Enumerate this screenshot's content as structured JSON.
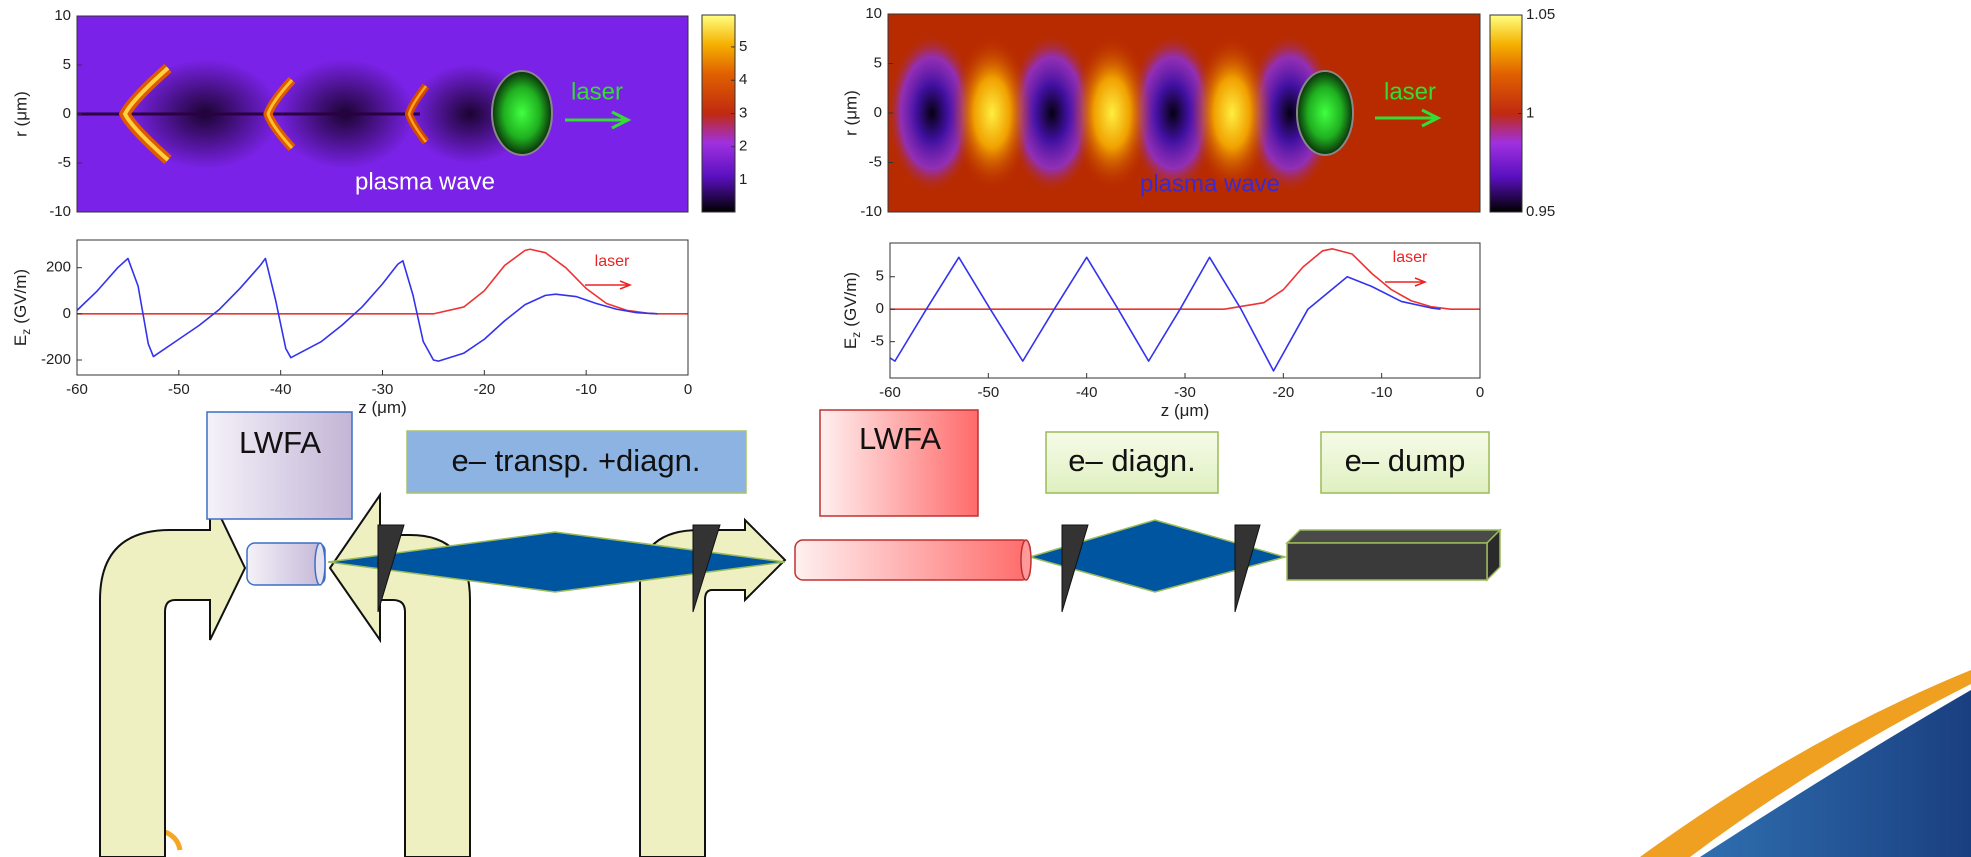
{
  "chart_data": [
    {
      "type": "heatmap",
      "ylabel": "r (μm)",
      "ylim": [
        -10,
        10
      ],
      "yticks": [
        10,
        5,
        0,
        -5,
        -10
      ],
      "colorbar": {
        "clim": [
          0.04,
          5.96
        ],
        "ticks": [
          1,
          2,
          3,
          4,
          5
        ]
      },
      "annotations": [
        {
          "text": "laser",
          "color": "#33dd33"
        },
        {
          "text": "plasma wave",
          "color": "#ffffff"
        }
      ]
    },
    {
      "type": "heatmap",
      "ylabel": "r (μm)",
      "ylim": [
        -10,
        10
      ],
      "yticks": [
        10,
        5,
        0,
        -5,
        -10
      ],
      "colorbar": {
        "clim": [
          0.95,
          1.05
        ],
        "ticks": [
          1.05,
          1,
          0.95
        ]
      },
      "annotations": [
        {
          "text": "laser",
          "color": "#33dd33"
        },
        {
          "text": "plasma wave",
          "color": "#3a2ad0"
        }
      ]
    },
    {
      "type": "line",
      "xlabel": "z (μm)",
      "ylabel": "E",
      "ylabel_subscript": "z",
      "ylabel_unit": "(GV/m)",
      "xlim": [
        -60,
        0
      ],
      "xticks": [
        -60,
        -50,
        -40,
        -30,
        -20,
        -10,
        0
      ],
      "ylim": [
        -265,
        320
      ],
      "yticks": [
        200,
        0,
        -200
      ],
      "annotations": [
        {
          "text": "laser",
          "color": "#ee2222"
        }
      ],
      "series": [
        {
          "color": "#ee3333",
          "x": [
            -60,
            -25,
            -22,
            -20,
            -18,
            -16,
            -15.5,
            -14,
            -12,
            -10,
            -8,
            -6,
            -4,
            -3,
            0
          ],
          "values": [
            0,
            0,
            30,
            100,
            210,
            275,
            280,
            265,
            200,
            110,
            45,
            15,
            3,
            0,
            0
          ]
        },
        {
          "color": "#3333ee",
          "x": [
            -60,
            -58,
            -56,
            -55,
            -54,
            -53,
            -52.5,
            -50,
            -48,
            -46,
            -44,
            -42,
            -41.5,
            -40.5,
            -39.5,
            -39,
            -36,
            -34,
            -32,
            -30,
            -28.5,
            -28,
            -27,
            -26,
            -25,
            -24.5,
            -22,
            -20,
            -18,
            -16,
            -14,
            -13,
            -11,
            -9,
            -7,
            -5,
            -3
          ],
          "values": [
            15,
            100,
            200,
            240,
            120,
            -130,
            -185,
            -110,
            -50,
            20,
            110,
            210,
            240,
            60,
            -150,
            -190,
            -120,
            -50,
            30,
            130,
            215,
            230,
            80,
            -120,
            -200,
            -205,
            -170,
            -110,
            -30,
            40,
            80,
            85,
            75,
            45,
            20,
            5,
            0
          ]
        }
      ]
    },
    {
      "type": "line",
      "xlabel": "z (μm)",
      "ylabel": "E",
      "ylabel_subscript": "z",
      "ylabel_unit": "(GV/m)",
      "xlim": [
        -60,
        0
      ],
      "xticks": [
        -60,
        -50,
        -40,
        -30,
        -20,
        -10,
        0
      ],
      "ylim": [
        -10.6,
        10.2
      ],
      "yticks": [
        5,
        0,
        -5
      ],
      "annotations": [
        {
          "text": "laser",
          "color": "#ee2222"
        }
      ],
      "series": [
        {
          "color": "#ee3333",
          "x": [
            -60,
            -26,
            -22,
            -20,
            -18,
            -16,
            -15,
            -13,
            -11,
            -9,
            -7,
            -5,
            -3,
            0
          ],
          "values": [
            0,
            0,
            1,
            3,
            6.5,
            9,
            9.3,
            8.5,
            5.5,
            3,
            1.3,
            0.4,
            0,
            0
          ]
        },
        {
          "color": "#3333ee",
          "x": [
            -60,
            -59.5,
            -56.3,
            -53,
            -49.8,
            -46.5,
            -43.3,
            -40,
            -36.8,
            -33.7,
            -30.5,
            -27.5,
            -24.3,
            -21,
            -17.5,
            -13.5,
            -11,
            -8,
            -5,
            -4
          ],
          "values": [
            -7.5,
            -8,
            0,
            8,
            0,
            -8,
            0,
            8,
            0,
            -8,
            0,
            8,
            0,
            -9.5,
            0,
            5,
            3.5,
            1.2,
            0.2,
            0
          ]
        }
      ]
    }
  ],
  "diagram": {
    "boxes": [
      {
        "label": "LWFA"
      },
      {
        "label": "e– transp. +diagn."
      },
      {
        "label": "LWFA"
      },
      {
        "label": "e– diagn."
      },
      {
        "label": "e– dump"
      }
    ]
  }
}
